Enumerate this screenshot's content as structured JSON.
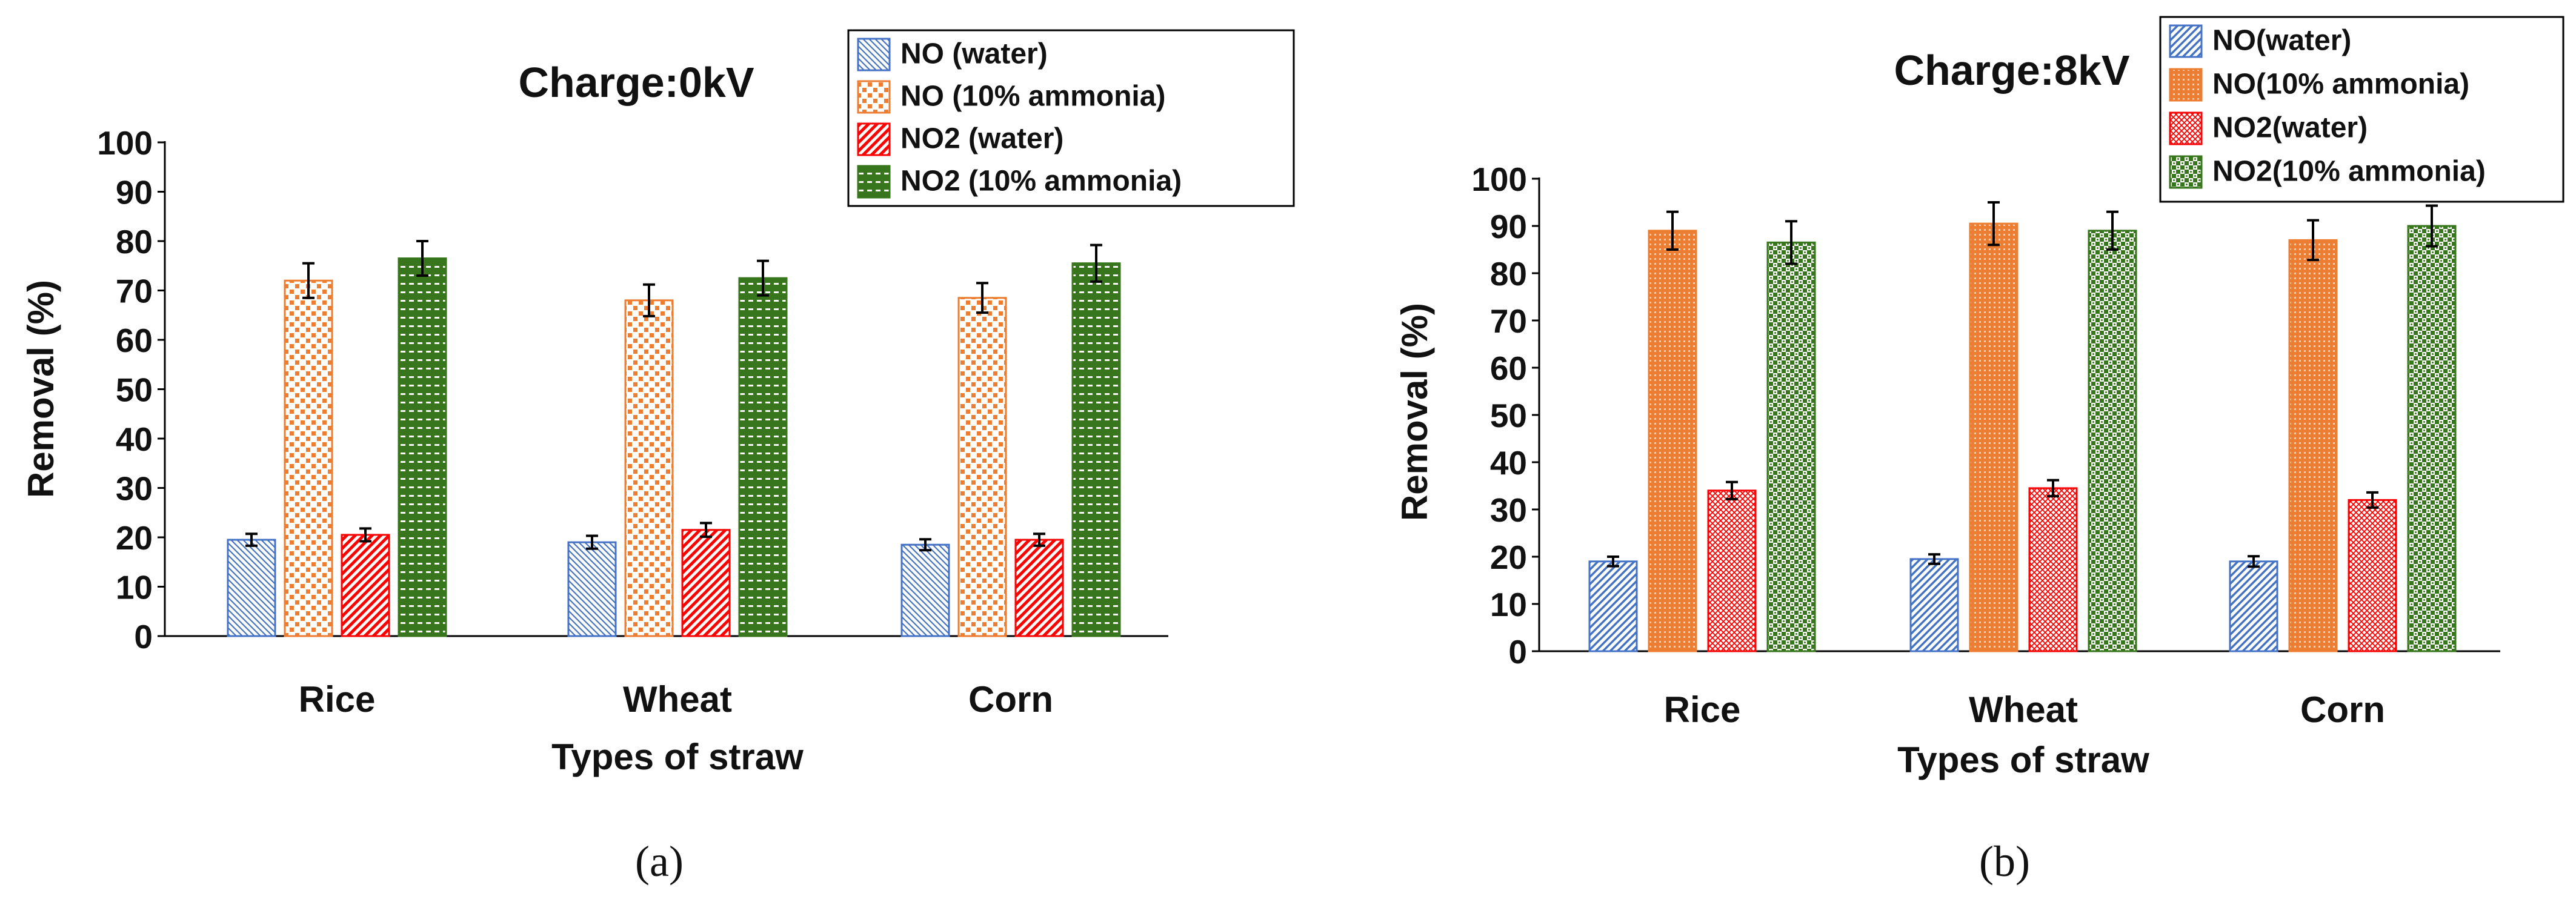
{
  "series_colors": {
    "no_water": "#4472c4",
    "no_ammonia": "#ed7d31",
    "no2_water": "#ff0000",
    "no2_ammonia": "#38761d"
  },
  "chart_data": [
    {
      "type": "bar",
      "panel": "(a)",
      "title": "Charge:0kV",
      "xlabel": "Types of straw",
      "ylabel": "Removal (%)",
      "ylim": [
        0,
        100
      ],
      "yticks": [
        0,
        10,
        20,
        30,
        40,
        50,
        60,
        70,
        80,
        90,
        100
      ],
      "categories": [
        "Rice",
        "Wheat",
        "Corn"
      ],
      "legend_position": "top-right",
      "series": [
        {
          "name": "NO (water)",
          "key": "no_water",
          "values": [
            19.5,
            19,
            18.5
          ],
          "errors": [
            1.2,
            1.3,
            1.1
          ]
        },
        {
          "name": "NO (10% ammonia)",
          "key": "no_ammonia",
          "values": [
            72,
            68,
            68.5
          ],
          "errors": [
            3.5,
            3.2,
            3.0
          ]
        },
        {
          "name": "NO2 (water)",
          "key": "no2_water",
          "values": [
            20.5,
            21.5,
            19.5
          ],
          "errors": [
            1.3,
            1.4,
            1.2
          ]
        },
        {
          "name": "NO2 (10% ammonia)",
          "key": "no2_ammonia",
          "values": [
            76.5,
            72.5,
            75.5
          ],
          "errors": [
            3.5,
            3.5,
            3.7
          ]
        }
      ]
    },
    {
      "type": "bar",
      "panel": "(b)",
      "title": "Charge:8kV",
      "xlabel": "Types of straw",
      "ylabel": "Removal (%)",
      "ylim": [
        0,
        100
      ],
      "yticks": [
        0,
        10,
        20,
        30,
        40,
        50,
        60,
        70,
        80,
        90,
        100
      ],
      "categories": [
        "Rice",
        "Wheat",
        "Corn"
      ],
      "legend_position": "top-right",
      "series": [
        {
          "name": "NO(water)",
          "key": "no_water",
          "values": [
            19,
            19.5,
            19
          ],
          "errors": [
            1.0,
            1.0,
            1.1
          ]
        },
        {
          "name": "NO(10% ammonia)",
          "key": "no_ammonia",
          "values": [
            89,
            90.5,
            87
          ],
          "errors": [
            4.0,
            4.5,
            4.2
          ]
        },
        {
          "name": "NO2(water)",
          "key": "no2_water",
          "values": [
            34,
            34.5,
            32
          ],
          "errors": [
            1.8,
            1.7,
            1.6
          ]
        },
        {
          "name": "NO2(10% ammonia)",
          "key": "no2_ammonia",
          "values": [
            86.5,
            89,
            90
          ],
          "errors": [
            4.5,
            4.0,
            4.3
          ]
        }
      ]
    }
  ]
}
